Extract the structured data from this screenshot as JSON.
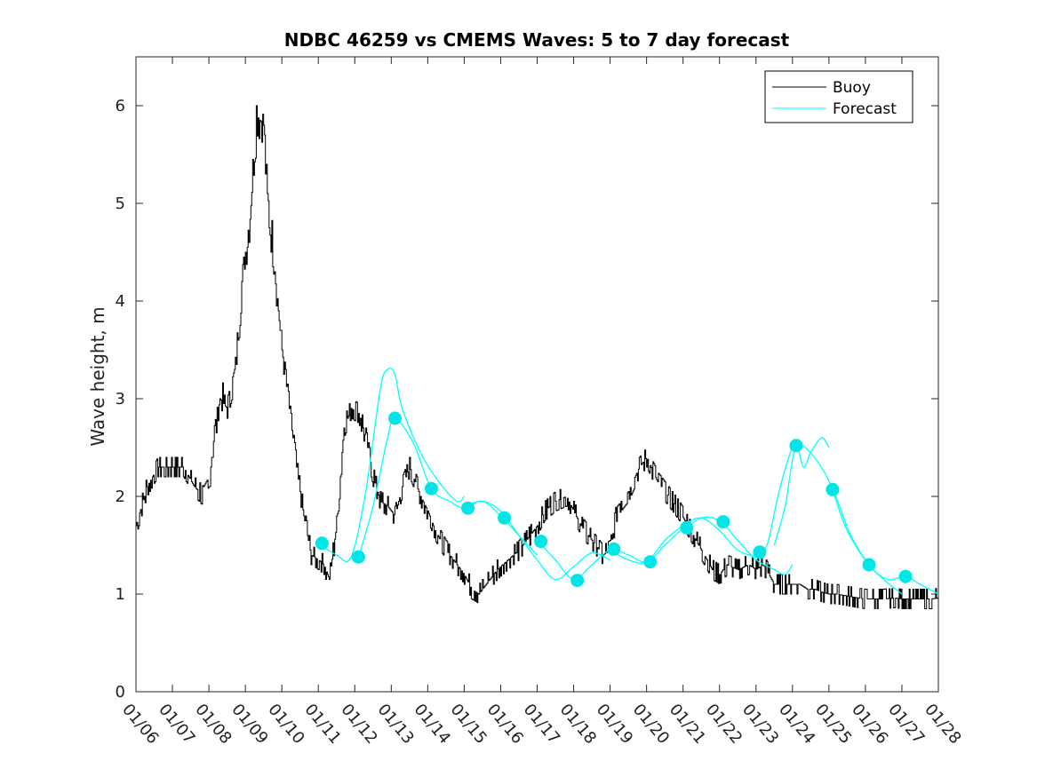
{
  "chart_data": {
    "type": "line",
    "title": "NDBC 46259 vs CMEMS Waves: 5 to 7 day forecast",
    "ylabel": "Wave height, m",
    "xlabel": "",
    "xlim": [
      0,
      22
    ],
    "ylim": [
      0,
      6.5
    ],
    "yticks": [
      0,
      1,
      2,
      3,
      4,
      5,
      6
    ],
    "xtick_labels": [
      "01/06",
      "01/07",
      "01/08",
      "01/09",
      "01/10",
      "01/11",
      "01/12",
      "01/13",
      "01/14",
      "01/15",
      "01/16",
      "01/17",
      "01/18",
      "01/19",
      "01/20",
      "01/21",
      "01/22",
      "01/23",
      "01/24",
      "01/25",
      "01/26",
      "01/27",
      "01/28"
    ],
    "legend": {
      "position": "top-right",
      "entries": [
        "Buoy",
        "Forecast"
      ]
    },
    "colors": {
      "buoy": "#000000",
      "forecast": "#00ffff",
      "markers": "#00e5e5"
    },
    "series": [
      {
        "name": "Buoy",
        "x": [
          0.0,
          0.3,
          0.6,
          1.0,
          1.3,
          1.6,
          1.85,
          2.0,
          2.1,
          2.3,
          2.5,
          2.7,
          2.9,
          3.1,
          3.3,
          3.5,
          3.6,
          3.8,
          3.9,
          4.0,
          4.2,
          4.4,
          4.6,
          4.8,
          5.0,
          5.15,
          5.3,
          5.5,
          5.7,
          5.9,
          6.1,
          6.15,
          6.3,
          6.5,
          6.7,
          6.9,
          7.1,
          7.3,
          7.5,
          7.8,
          8.0,
          8.2,
          8.5,
          8.8,
          9.0,
          9.2,
          9.4,
          9.5,
          9.7,
          9.9,
          10.2,
          10.5,
          10.8,
          11.0,
          11.2,
          11.5,
          11.8,
          12.0,
          12.2,
          12.5,
          12.8,
          13.0,
          13.2,
          13.5,
          13.8,
          14.0,
          14.3,
          14.6,
          14.9,
          15.2,
          15.5,
          15.8,
          16.0,
          16.2,
          16.5,
          16.8,
          17.0,
          17.2,
          17.5,
          17.8,
          18.0,
          18.2,
          18.4,
          18.6,
          18.8,
          19.0,
          19.2,
          19.5,
          19.8,
          20.0,
          20.2,
          20.5,
          20.8,
          21.0,
          21.3,
          21.5,
          21.8,
          22.0
        ],
        "y": [
          1.7,
          2.1,
          2.3,
          2.3,
          2.3,
          2.1,
          2.0,
          2.1,
          2.5,
          3.0,
          2.9,
          3.2,
          4.2,
          4.8,
          5.9,
          5.8,
          5.0,
          4.4,
          3.9,
          3.5,
          2.9,
          2.3,
          1.8,
          1.4,
          1.35,
          1.3,
          1.15,
          1.7,
          2.7,
          2.9,
          2.85,
          2.8,
          2.6,
          2.2,
          1.95,
          1.9,
          1.8,
          2.1,
          2.3,
          2.0,
          1.85,
          1.65,
          1.45,
          1.3,
          1.2,
          1.05,
          1.0,
          1.05,
          1.15,
          1.25,
          1.35,
          1.45,
          1.6,
          1.7,
          1.85,
          1.95,
          2.0,
          1.85,
          1.7,
          1.55,
          1.4,
          1.45,
          1.9,
          2.05,
          2.3,
          2.4,
          2.15,
          2.0,
          1.85,
          1.65,
          1.45,
          1.25,
          1.2,
          1.3,
          1.25,
          1.3,
          1.25,
          1.3,
          1.1,
          1.1,
          1.1,
          1.1,
          1.05,
          1.05,
          1.02,
          1.0,
          1.0,
          0.98,
          0.96,
          0.95,
          0.95,
          0.95,
          0.96,
          0.95,
          0.95,
          0.95,
          0.95,
          0.96
        ]
      },
      {
        "name": "Forecast",
        "segments": [
          {
            "x": [
              5.0,
              5.5,
              5.9,
              6.3,
              6.7,
              6.9,
              7.1,
              7.3,
              7.8,
              8.3,
              8.8,
              9.0
            ],
            "y": [
              1.52,
              1.4,
              1.38,
              2.05,
              3.1,
              3.3,
              3.25,
              2.9,
              2.45,
              2.15,
              1.95,
              2.0
            ]
          },
          {
            "x": [
              6.1,
              6.5,
              6.9,
              7.1,
              7.6,
              8.1,
              8.6,
              9.0,
              9.5,
              10.0,
              10.5,
              11.0
            ],
            "y": [
              1.37,
              1.9,
              2.6,
              2.8,
              2.55,
              2.08,
              1.95,
              1.88,
              1.95,
              1.8,
              1.6,
              1.4
            ]
          },
          {
            "x": [
              9.0,
              9.5,
              10.0,
              10.5,
              11.0,
              11.5,
              12.0,
              12.5,
              13.0
            ],
            "y": [
              1.9,
              1.95,
              1.85,
              1.6,
              1.35,
              1.15,
              1.28,
              1.42,
              1.35
            ]
          },
          {
            "x": [
              11.0,
              11.5,
              12.0,
              12.5,
              13.0,
              13.5,
              14.0,
              14.5,
              15.0
            ],
            "y": [
              1.55,
              1.35,
              1.15,
              1.3,
              1.45,
              1.4,
              1.33,
              1.5,
              1.68
            ]
          },
          {
            "x": [
              13.0,
              13.5,
              14.0,
              14.5,
              15.0,
              15.5,
              16.0,
              16.5,
              17.0
            ],
            "y": [
              1.45,
              1.35,
              1.33,
              1.55,
              1.7,
              1.78,
              1.65,
              1.45,
              1.38
            ]
          },
          {
            "x": [
              15.0,
              15.5,
              16.0,
              16.5,
              17.0,
              17.5,
              17.8,
              18.0
            ],
            "y": [
              1.65,
              1.78,
              1.75,
              1.55,
              1.35,
              1.25,
              1.2,
              1.3
            ]
          },
          {
            "x": [
              17.0,
              17.3,
              17.6,
              17.9,
              18.1,
              18.3,
              18.5,
              18.8,
              19.0
            ],
            "y": [
              1.42,
              1.5,
              2.0,
              2.4,
              2.55,
              2.3,
              2.45,
              2.6,
              2.5
            ]
          },
          {
            "x": [
              17.5,
              17.8,
              18.1,
              18.6,
              19.1,
              19.6,
              20.1,
              20.5,
              21.0
            ],
            "y": [
              1.5,
              1.9,
              2.5,
              2.4,
              2.08,
              1.6,
              1.3,
              1.15,
              1.0
            ]
          },
          {
            "x": [
              19.1,
              19.5,
              20.1,
              20.6,
              21.1,
              21.5,
              22.0
            ],
            "y": [
              2.07,
              1.65,
              1.3,
              1.15,
              1.18,
              1.1,
              1.0
            ]
          }
        ]
      },
      {
        "name": "Forecast markers",
        "x": [
          5.1,
          6.1,
          7.1,
          8.1,
          9.1,
          10.1,
          11.1,
          12.1,
          13.1,
          14.1,
          15.1,
          16.1,
          17.1,
          18.1,
          19.1,
          20.1,
          21.1
        ],
        "y": [
          1.52,
          1.38,
          2.8,
          2.08,
          1.88,
          1.78,
          1.54,
          1.14,
          1.46,
          1.33,
          1.68,
          1.74,
          1.43,
          2.52,
          2.07,
          1.3,
          1.18
        ]
      }
    ]
  }
}
